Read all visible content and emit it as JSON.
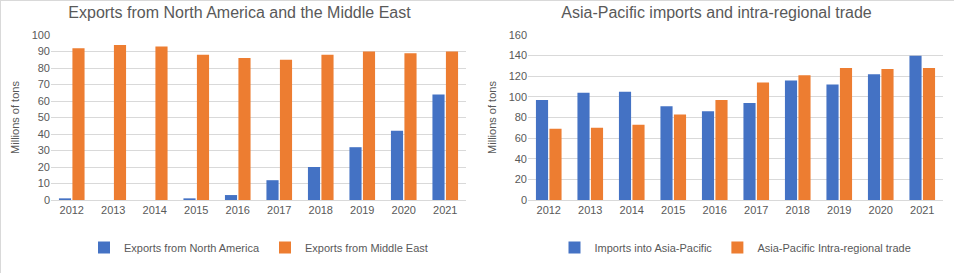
{
  "chart_data": [
    {
      "type": "bar",
      "title": "Exports from North America and the Middle East",
      "y_label": "Millions of tons",
      "categories": [
        "2012",
        "2013",
        "2014",
        "2015",
        "2016",
        "2017",
        "2018",
        "2019",
        "2020",
        "2021"
      ],
      "series": [
        {
          "name": "Exports from North America",
          "color": "#4472c4",
          "values": [
            1,
            0,
            0,
            1,
            3,
            12,
            20,
            32,
            42,
            64
          ]
        },
        {
          "name": "Exports from Middle East",
          "color": "#ed7d31",
          "values": [
            92,
            94,
            93,
            88,
            86,
            85,
            88,
            90,
            89,
            90
          ]
        }
      ],
      "ylim": [
        0,
        100
      ],
      "yticks": [
        0,
        10,
        20,
        30,
        40,
        50,
        60,
        70,
        80,
        90,
        100
      ],
      "grid": true,
      "legend": "bottom"
    },
    {
      "type": "bar",
      "title": "Asia-Pacific imports and intra-regional trade",
      "y_label": "Millions of tons",
      "categories": [
        "2012",
        "2013",
        "2014",
        "2015",
        "2016",
        "2017",
        "2018",
        "2019",
        "2020",
        "2021"
      ],
      "series": [
        {
          "name": "Imports into Asia-Pacific",
          "color": "#4472c4",
          "values": [
            97,
            104,
            105,
            91,
            86,
            94,
            116,
            112,
            122,
            140
          ]
        },
        {
          "name": "Asia-Pacific Intra-regional trade",
          "color": "#ed7d31",
          "values": [
            69,
            70,
            73,
            83,
            97,
            114,
            121,
            128,
            127,
            128
          ]
        }
      ],
      "ylim": [
        0,
        160
      ],
      "yticks": [
        0,
        20,
        40,
        60,
        80,
        100,
        120,
        140,
        160
      ],
      "grid": true,
      "legend": "bottom"
    }
  ]
}
